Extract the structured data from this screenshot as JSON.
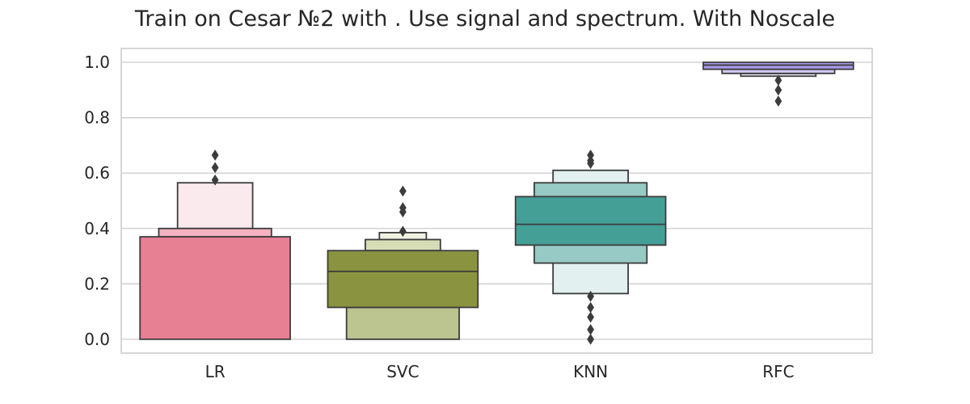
{
  "chart_data": {
    "type": "boxen",
    "title": "Train on Cesar №2 with . Use signal and spectrum. With Noscale",
    "xlabel": "",
    "ylabel": "",
    "categories": [
      "LR",
      "SVC",
      "KNN",
      "RFC"
    ],
    "ylim": [
      -0.05,
      1.05
    ],
    "yticks": [
      0.0,
      0.2,
      0.4,
      0.6,
      0.8,
      1.0
    ],
    "ytick_labels": [
      "0.0",
      "0.2",
      "0.4",
      "0.6",
      "0.8",
      "1.0"
    ],
    "grid": true,
    "legend": "none",
    "groups": [
      {
        "name": "LR",
        "color": "#e88094",
        "median": null,
        "levels": [
          {
            "low": 0.0,
            "high": 0.37,
            "color": "#e88094"
          },
          {
            "low": 0.37,
            "high": 0.4,
            "color": "#f3b2bf"
          },
          {
            "low": 0.4,
            "high": 0.565,
            "color": "#fae9ed"
          }
        ],
        "outliers": [
          0.575,
          0.62,
          0.665
        ]
      },
      {
        "name": "SVC",
        "color": "#8a9440",
        "median": 0.245,
        "levels": [
          {
            "low": 0.115,
            "high": 0.32,
            "color": "#8a9440"
          },
          {
            "low": 0.0,
            "high": 0.115,
            "color": "#bcc48f"
          },
          {
            "low": 0.32,
            "high": 0.36,
            "color": "#d6dcb5"
          },
          {
            "low": 0.36,
            "high": 0.385,
            "color": "#f0f2e4"
          }
        ],
        "outliers": [
          0.39,
          0.46,
          0.475,
          0.535
        ]
      },
      {
        "name": "KNN",
        "color": "#44a097",
        "median": 0.415,
        "levels": [
          {
            "low": 0.34,
            "high": 0.515,
            "color": "#44a097"
          },
          {
            "low": 0.275,
            "high": 0.565,
            "color": "#97c9c5"
          },
          {
            "low": 0.165,
            "high": 0.61,
            "color": "#e2f0ef"
          }
        ],
        "outliers": [
          0.0,
          0.035,
          0.08,
          0.115,
          0.155,
          0.635,
          0.645,
          0.665
        ]
      },
      {
        "name": "RFC",
        "color": "#a999ea",
        "median": 0.99,
        "levels": [
          {
            "low": 0.975,
            "high": 1.0,
            "color": "#a999ea"
          },
          {
            "low": 0.96,
            "high": 0.975,
            "color": "#cfc6f2"
          },
          {
            "low": 0.95,
            "high": 0.96,
            "color": "#ece8fa"
          }
        ],
        "outliers": [
          0.86,
          0.9,
          0.935
        ]
      }
    ]
  }
}
